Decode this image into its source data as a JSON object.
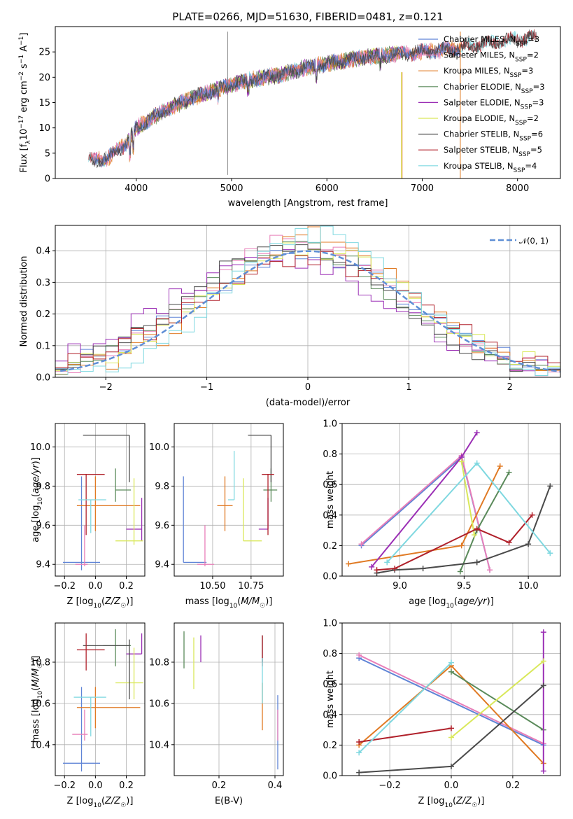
{
  "title": "PLATE=0266, MJD=51630, FIBERID=0481, z=0.121",
  "colors": {
    "Chabrier MILES": "#5f84d6",
    "Salpeter MILES": "#e87fb9",
    "Kroupa MILES": "#e07a24",
    "Chabrier ELODIE": "#5a8a5a",
    "Salpeter ELODIE": "#9b2fb5",
    "Kroupa ELODIE": "#d9e85a",
    "Chabrier STELIB": "#4a4a4a",
    "Salpeter STELIB": "#b0202a",
    "Kroupa STELIB": "#7fd8e0"
  },
  "chart_data": [
    {
      "id": "spectrum",
      "type": "line",
      "title": "PLATE=0266, MJD=51630, FIBERID=0481, z=0.121",
      "xlabel": "wavelength [Angstrom, rest frame]",
      "ylabel": "Flux [f_λ10^-17 erg cm^-2 s^-1 A^-1]",
      "xlim": [
        3150,
        8450
      ],
      "ylim": [
        0,
        30
      ],
      "xticks": [
        "4000",
        "5000",
        "6000",
        "7000",
        "8000"
      ],
      "yticks": [
        "0",
        "5",
        "10",
        "15",
        "20",
        "25"
      ],
      "grid": false,
      "legend_position": "top-right",
      "legend": [
        "Chabrier MILES, N_SSP=3",
        "Salpeter MILES, N_SSP=2",
        "Kroupa MILES, N_SSP=3",
        "Chabrier ELODIE, N_SSP=3",
        "Salpeter ELODIE, N_SSP=3",
        "Kroupa ELODIE, N_SSP=2",
        "Chabrier STELIB, N_SSP=6",
        "Salpeter STELIB, N_SSP=5",
        "Kroupa STELIB, N_SSP=4"
      ],
      "continuum": {
        "x": [
          3400,
          3700,
          3900,
          4000,
          4300,
          4600,
          4900,
          5200,
          5500,
          5800,
          6100,
          6400,
          6700,
          7000,
          7300,
          7600,
          8000,
          8250
        ],
        "y": [
          3.5,
          4,
          7,
          10,
          13.5,
          16,
          18,
          19.5,
          20.5,
          22,
          23,
          24,
          24.5,
          25,
          25.5,
          26.5,
          27.5,
          28
        ]
      },
      "series_ranges": {
        "MILES": [
          3540,
          7410
        ],
        "ELODIE": [
          3900,
          6800
        ],
        "STELIB": [
          3500,
          8200
        ]
      }
    },
    {
      "id": "residuals",
      "type": "histogram",
      "xlabel": "(data-model)/error",
      "ylabel": "Normed distribution",
      "xlim": [
        -2.5,
        2.5
      ],
      "ylim": [
        0,
        0.48
      ],
      "xticks": [
        "−2",
        "−1",
        "0",
        "1",
        "2"
      ],
      "yticks": [
        "0.0",
        "0.1",
        "0.2",
        "0.3",
        "0.4"
      ],
      "grid": true,
      "legend_position": "top-right",
      "legend": [
        "𝒩(0, 1)"
      ],
      "bins": 40,
      "reference": "normal(0,1) dashed"
    },
    {
      "id": "age_vs_Z",
      "type": "errorbar",
      "xlabel": "Z [log10(Z/Z☉)]",
      "ylabel": "age  [log10(age/yr)]",
      "xlim": [
        -0.26,
        0.32
      ],
      "ylim": [
        9.34,
        10.12
      ],
      "xticks": [
        "−0.2",
        "0.0",
        "0.2"
      ],
      "yticks": [
        "9.4",
        "9.6",
        "9.8",
        "10.0"
      ],
      "grid": true,
      "points": [
        {
          "series": "Chabrier MILES",
          "x": -0.09,
          "xerr": [
            0.12,
            0.12
          ],
          "y": 9.41,
          "yerr": [
            0.04,
            0.44
          ]
        },
        {
          "series": "Salpeter MILES",
          "x": -0.07,
          "xerr": [
            0.06,
            0.02
          ],
          "y": 9.4,
          "yerr": [
            0.01,
            0.2
          ]
        },
        {
          "series": "Kroupa MILES",
          "x": 0.0,
          "xerr": [
            0.12,
            0.29
          ],
          "y": 9.7,
          "yerr": [
            0.13,
            0.15
          ]
        },
        {
          "series": "Chabrier ELODIE",
          "x": 0.13,
          "xerr": [
            0.0,
            0.1
          ],
          "y": 9.78,
          "yerr": [
            0.06,
            0.11
          ]
        },
        {
          "series": "Salpeter ELODIE",
          "x": 0.3,
          "xerr": [
            0.1,
            0.0
          ],
          "y": 9.58,
          "yerr": [
            0.06,
            0.16
          ]
        },
        {
          "series": "Kroupa ELODIE",
          "x": 0.25,
          "xerr": [
            0.12,
            0.06
          ],
          "y": 9.52,
          "yerr": [
            0.02,
            0.32
          ]
        },
        {
          "series": "Chabrier STELIB",
          "x": 0.22,
          "xerr": [
            0.3,
            0.0
          ],
          "y": 10.06,
          "yerr": [
            0.24,
            0.0
          ]
        },
        {
          "series": "Salpeter STELIB",
          "x": -0.06,
          "xerr": [
            0.06,
            0.12
          ],
          "y": 9.86,
          "yerr": [
            0.31,
            0.0
          ]
        },
        {
          "series": "Kroupa STELIB",
          "x": -0.03,
          "xerr": [
            0.08,
            0.1
          ],
          "y": 9.73,
          "yerr": [
            0.17,
            0.0
          ]
        }
      ]
    },
    {
      "id": "age_vs_mass",
      "type": "errorbar",
      "xlabel": "mass [log10(M/M☉)]",
      "ylabel": "",
      "xlim": [
        10.25,
        10.96
      ],
      "ylim": [
        9.34,
        10.12
      ],
      "xticks": [
        "10.50",
        "10.75"
      ],
      "yticks": [
        "9.4",
        "9.6",
        "9.8",
        "10.0"
      ],
      "grid": true,
      "points": [
        {
          "series": "Chabrier MILES",
          "x": 10.31,
          "xerr": [
            0.0,
            0.15
          ],
          "y": 9.41,
          "yerr": [
            0.0,
            0.44
          ]
        },
        {
          "series": "Salpeter MILES",
          "x": 10.45,
          "xerr": [
            0.05,
            0.06
          ],
          "y": 9.4,
          "yerr": [
            0.01,
            0.2
          ]
        },
        {
          "series": "Kroupa MILES",
          "x": 10.58,
          "xerr": [
            0.05,
            0.05
          ],
          "y": 9.7,
          "yerr": [
            0.13,
            0.15
          ]
        },
        {
          "series": "Chabrier ELODIE",
          "x": 10.88,
          "xerr": [
            0.05,
            0.04
          ],
          "y": 9.78,
          "yerr": [
            0.06,
            0.11
          ]
        },
        {
          "series": "Salpeter ELODIE",
          "x": 10.86,
          "xerr": [
            0.06,
            0.0
          ],
          "y": 9.58,
          "yerr": [
            0.0,
            0.16
          ]
        },
        {
          "series": "Kroupa ELODIE",
          "x": 10.7,
          "xerr": [
            0.0,
            0.12
          ],
          "y": 9.52,
          "yerr": [
            0.0,
            0.32
          ]
        },
        {
          "series": "Chabrier STELIB",
          "x": 10.88,
          "xerr": [
            0.15,
            0.0
          ],
          "y": 10.06,
          "yerr": [
            0.24,
            0.0
          ]
        },
        {
          "series": "Salpeter STELIB",
          "x": 10.86,
          "xerr": [
            0.04,
            0.04
          ],
          "y": 9.86,
          "yerr": [
            0.31,
            0.0
          ]
        },
        {
          "series": "Kroupa STELIB",
          "x": 10.64,
          "xerr": [
            0.04,
            0.0
          ],
          "y": 9.73,
          "yerr": [
            0.0,
            0.25
          ]
        }
      ]
    },
    {
      "id": "weight_vs_age",
      "type": "line",
      "xlabel": "age  [log10(age/yr)]",
      "ylabel": "mass weight",
      "xlim": [
        8.55,
        10.25
      ],
      "ylim": [
        0,
        1
      ],
      "xticks": [
        "9.0",
        "9.5",
        "10.0"
      ],
      "yticks": [
        "0.0",
        "0.2",
        "0.4",
        "0.6",
        "0.8",
        "1.0"
      ],
      "grid": true,
      "series": [
        {
          "name": "Chabrier MILES",
          "x": [
            8.7,
            9.48,
            9.7
          ],
          "y": [
            0.2,
            0.78,
            0.04
          ]
        },
        {
          "name": "Salpeter MILES",
          "x": [
            8.7,
            9.48,
            9.7
          ],
          "y": [
            0.21,
            0.79,
            0.04
          ]
        },
        {
          "name": "Kroupa MILES",
          "x": [
            8.6,
            9.48,
            9.78
          ],
          "y": [
            0.08,
            0.2,
            0.72
          ]
        },
        {
          "name": "Chabrier ELODIE",
          "x": [
            9.47,
            9.6,
            9.85
          ],
          "y": [
            0.03,
            0.3,
            0.68
          ]
        },
        {
          "name": "Salpeter ELODIE",
          "x": [
            8.78,
            9.48,
            9.6
          ],
          "y": [
            0.06,
            0.78,
            0.94
          ]
        },
        {
          "name": "Kroupa ELODIE",
          "x": [
            9.48,
            9.58
          ],
          "y": [
            0.75,
            0.27
          ]
        },
        {
          "name": "Chabrier STELIB",
          "x": [
            8.82,
            8.96,
            9.18,
            9.6,
            10.0,
            10.17
          ],
          "y": [
            0.02,
            0.04,
            0.05,
            0.09,
            0.21,
            0.59
          ]
        },
        {
          "name": "Salpeter STELIB",
          "x": [
            8.82,
            8.96,
            9.6,
            9.85,
            10.03
          ],
          "y": [
            0.04,
            0.05,
            0.31,
            0.22,
            0.4
          ]
        },
        {
          "name": "Kroupa STELIB",
          "x": [
            8.9,
            9.6,
            10.17
          ],
          "y": [
            0.09,
            0.74,
            0.15
          ]
        }
      ]
    },
    {
      "id": "mass_vs_Z",
      "type": "errorbar",
      "xlabel": "Z [log10(Z/Z☉)]",
      "ylabel": "mass [log10(M/M☉)]",
      "xlim": [
        -0.26,
        0.32
      ],
      "ylim": [
        10.25,
        10.99
      ],
      "xticks": [
        "−0.2",
        "0.0",
        "0.2"
      ],
      "yticks": [
        "10.4",
        "10.6",
        "10.8"
      ],
      "grid": true,
      "points": [
        {
          "series": "Chabrier MILES",
          "x": -0.09,
          "xerr": [
            0.12,
            0.12
          ],
          "y": 10.31,
          "yerr": [
            0.04,
            0.37
          ]
        },
        {
          "series": "Salpeter MILES",
          "x": -0.07,
          "xerr": [
            0.08,
            0.02
          ],
          "y": 10.45,
          "yerr": [
            0.03,
            0.12
          ]
        },
        {
          "series": "Kroupa MILES",
          "x": 0.0,
          "xerr": [
            0.12,
            0.29
          ],
          "y": 10.58,
          "yerr": [
            0.1,
            0.1
          ]
        },
        {
          "series": "Chabrier ELODIE",
          "x": 0.13,
          "xerr": [
            0.08,
            0.1
          ],
          "y": 10.88,
          "yerr": [
            0.1,
            0.08
          ]
        },
        {
          "series": "Salpeter ELODIE",
          "x": 0.3,
          "xerr": [
            0.1,
            0.0
          ],
          "y": 10.84,
          "yerr": [
            0.0,
            0.1
          ]
        },
        {
          "series": "Kroupa ELODIE",
          "x": 0.25,
          "xerr": [
            0.12,
            0.06
          ],
          "y": 10.7,
          "yerr": [
            0.08,
            0.17
          ]
        },
        {
          "series": "Chabrier STELIB",
          "x": 0.22,
          "xerr": [
            0.3,
            0.0
          ],
          "y": 10.88,
          "yerr": [
            0.26,
            0.03
          ]
        },
        {
          "series": "Salpeter STELIB",
          "x": -0.06,
          "xerr": [
            0.06,
            0.12
          ],
          "y": 10.86,
          "yerr": [
            0.1,
            0.08
          ]
        },
        {
          "series": "Kroupa STELIB",
          "x": -0.03,
          "xerr": [
            0.11,
            0.1
          ],
          "y": 10.63,
          "yerr": [
            0.19,
            0.0
          ]
        }
      ]
    },
    {
      "id": "mass_vs_ebv",
      "type": "errorbar",
      "xlabel": "E(B-V)",
      "ylabel": "",
      "xlim": [
        0.04,
        0.43
      ],
      "ylim": [
        10.25,
        10.99
      ],
      "xticks": [
        "0.2",
        "0.4"
      ],
      "yticks": [
        "10.4",
        "10.6",
        "10.8"
      ],
      "grid": true,
      "points": [
        {
          "series": "Chabrier MILES",
          "x": 0.41,
          "y": 10.35,
          "yerr": [
            0.07,
            0.29
          ]
        },
        {
          "series": "Salpeter MILES",
          "x": 0.41,
          "y": 10.45,
          "yerr": [
            0.03,
            0.12
          ]
        },
        {
          "series": "Kroupa MILES",
          "x": 0.355,
          "y": 10.6,
          "yerr": [
            0.13,
            0.1
          ]
        },
        {
          "series": "Chabrier ELODIE",
          "x": 0.075,
          "y": 10.85,
          "yerr": [
            0.08,
            0.1
          ]
        },
        {
          "series": "Salpeter ELODIE",
          "x": 0.135,
          "y": 10.86,
          "yerr": [
            0.06,
            0.07
          ]
        },
        {
          "series": "Kroupa ELODIE",
          "x": 0.11,
          "y": 10.8,
          "yerr": [
            0.13,
            0.12
          ]
        },
        {
          "series": "Chabrier STELIB",
          "x": 0.355,
          "y": 10.88,
          "yerr": [
            0.08,
            0.05
          ]
        },
        {
          "series": "Salpeter STELIB",
          "x": 0.355,
          "y": 10.88,
          "yerr": [
            0.1,
            0.05
          ]
        },
        {
          "series": "Kroupa STELIB",
          "x": 0.355,
          "y": 10.7,
          "yerr": [
            0.1,
            0.12
          ]
        }
      ]
    },
    {
      "id": "weight_vs_Z",
      "type": "line",
      "xlabel": "Z [log10(Z/Z☉)]",
      "ylabel": "mass weight",
      "xlim": [
        -0.355,
        0.355
      ],
      "ylim": [
        0,
        1
      ],
      "xticks": [
        "−0.2",
        "0.0",
        "0.2"
      ],
      "yticks": [
        "0.0",
        "0.2",
        "0.4",
        "0.6",
        "0.8",
        "1.0"
      ],
      "grid": true,
      "series": [
        {
          "name": "Chabrier MILES",
          "x": [
            -0.3,
            0.3
          ],
          "y": [
            0.77,
            0.2
          ]
        },
        {
          "name": "Salpeter MILES",
          "x": [
            -0.3,
            0.3
          ],
          "y": [
            0.79,
            0.21
          ]
        },
        {
          "name": "Kroupa MILES",
          "x": [
            -0.3,
            0.0,
            0.3
          ],
          "y": [
            0.2,
            0.72,
            0.08
          ]
        },
        {
          "name": "Chabrier ELODIE",
          "x": [
            0.0,
            0.3
          ],
          "y": [
            0.68,
            0.3
          ]
        },
        {
          "name": "Salpeter ELODIE",
          "x": [
            0.3,
            0.3
          ],
          "y": [
            0.94,
            0.03
          ]
        },
        {
          "name": "Kroupa ELODIE",
          "x": [
            0.0,
            0.3
          ],
          "y": [
            0.25,
            0.75
          ]
        },
        {
          "name": "Chabrier STELIB",
          "x": [
            -0.3,
            0.0,
            0.3
          ],
          "y": [
            0.02,
            0.06,
            0.59
          ]
        },
        {
          "name": "Salpeter STELIB",
          "x": [
            -0.3,
            0.0
          ],
          "y": [
            0.22,
            0.31
          ]
        },
        {
          "name": "Kroupa STELIB",
          "x": [
            -0.3,
            0.0
          ],
          "y": [
            0.15,
            0.74
          ]
        }
      ]
    }
  ]
}
